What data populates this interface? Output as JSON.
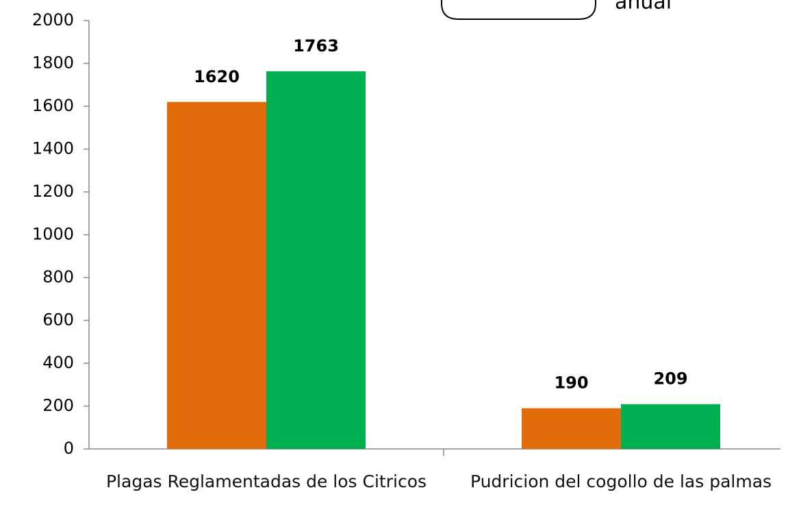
{
  "chart_data": {
    "type": "bar",
    "annotation": "anual",
    "categories": [
      "Plagas Reglamentadas de los Citricos",
      "Pudricion del cogollo de las palmas"
    ],
    "series": [
      {
        "color": "#e36c0a",
        "values": [
          1620,
          190
        ]
      },
      {
        "color": "#00b050",
        "values": [
          1763,
          209
        ]
      }
    ],
    "ylim": [
      0,
      2000
    ],
    "yticks": [
      0,
      200,
      400,
      600,
      800,
      1000,
      1200,
      1400,
      1600,
      1800,
      2000
    ]
  }
}
